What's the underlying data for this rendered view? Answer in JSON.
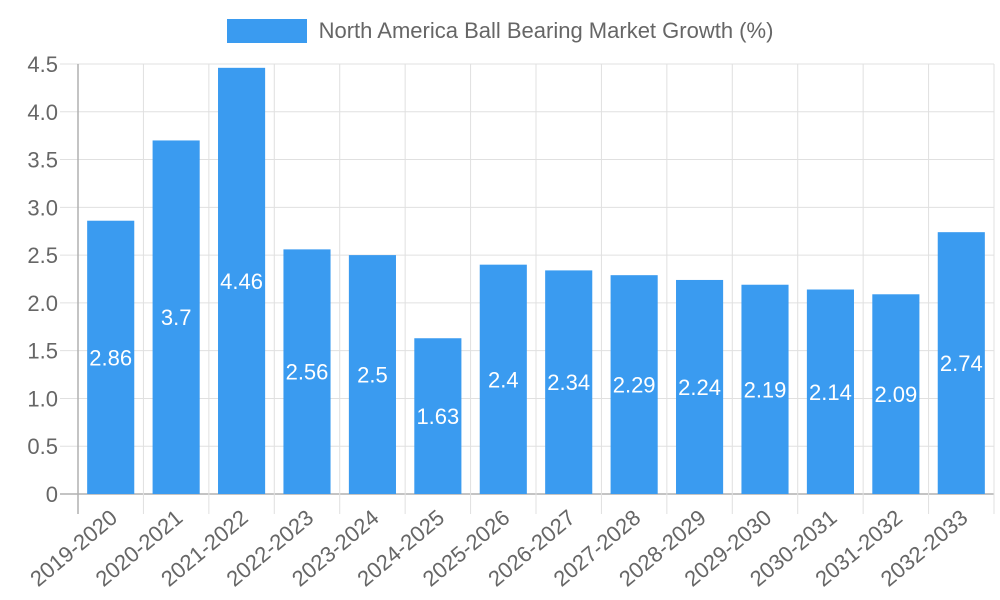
{
  "legend": {
    "label": "North America Ball Bearing Market Growth (%)",
    "color": "#3a9bf0"
  },
  "chart_data": {
    "type": "bar",
    "title": "",
    "xlabel": "",
    "ylabel": "",
    "ylim": [
      0,
      4.5
    ],
    "yticks": [
      "0",
      "0.5",
      "1.0",
      "1.5",
      "2.0",
      "2.5",
      "3.0",
      "3.5",
      "4.0",
      "4.5"
    ],
    "grid": true,
    "legend_position": "top",
    "categories": [
      "2019-2020",
      "2020-2021",
      "2021-2022",
      "2022-2023",
      "2023-2024",
      "2024-2025",
      "2025-2026",
      "2026-2027",
      "2027-2028",
      "2028-2029",
      "2029-2030",
      "2030-2031",
      "2031-2032",
      "2032-2033"
    ],
    "series": [
      {
        "name": "North America Ball Bearing Market Growth (%)",
        "color": "#3a9bf0",
        "values": [
          2.86,
          3.7,
          4.46,
          2.56,
          2.5,
          1.63,
          2.4,
          2.34,
          2.29,
          2.24,
          2.19,
          2.14,
          2.09,
          2.74
        ],
        "data_labels": [
          "2.86",
          "3.7",
          "4.46",
          "2.56",
          "2.5",
          "1.63",
          "2.4",
          "2.34",
          "2.29",
          "2.24",
          "2.19",
          "2.14",
          "2.09",
          "2.74"
        ]
      }
    ]
  }
}
